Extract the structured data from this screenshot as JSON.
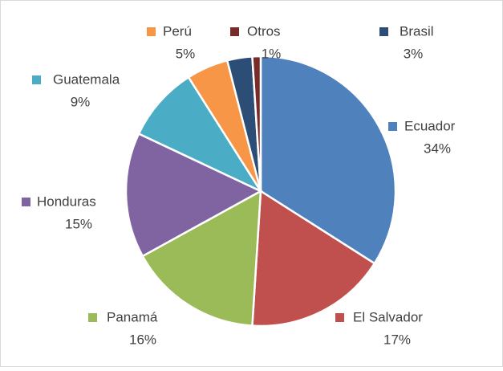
{
  "chart_data": {
    "type": "pie",
    "categories": [
      "Ecuador",
      "El Salvador",
      "Panamá",
      "Honduras",
      "Guatemala",
      "Perú",
      "Brasil",
      "Otros"
    ],
    "values": [
      34,
      17,
      16,
      15,
      9,
      5,
      3,
      1
    ],
    "value_labels": [
      "34%",
      "17%",
      "16%",
      "15%",
      "9%",
      "5%",
      "3%",
      "1%"
    ],
    "colors": [
      "#4f81bd",
      "#c0504d",
      "#9bbb59",
      "#8064a2",
      "#4bacc6",
      "#f79646",
      "#2c4d75",
      "#772c2a"
    ]
  }
}
